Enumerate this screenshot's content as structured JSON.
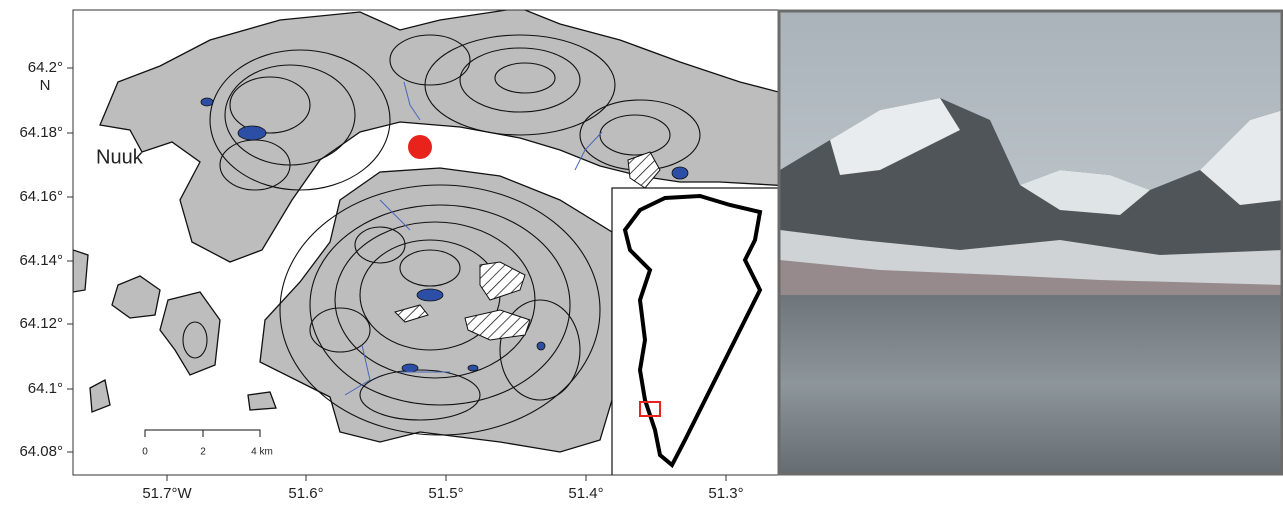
{
  "map": {
    "place_label": "Nuuk",
    "y_labels": [
      "64.2°",
      "64.18°",
      "64.16°",
      "64.14°",
      "64.12°",
      "64.1°",
      "64.08°"
    ],
    "y_unit": "N",
    "x_labels": [
      "51.7°W",
      "51.6°",
      "51.5°",
      "51.4°",
      "51.3°"
    ],
    "scale_bar": [
      "0",
      "2",
      "4 km"
    ]
  }
}
